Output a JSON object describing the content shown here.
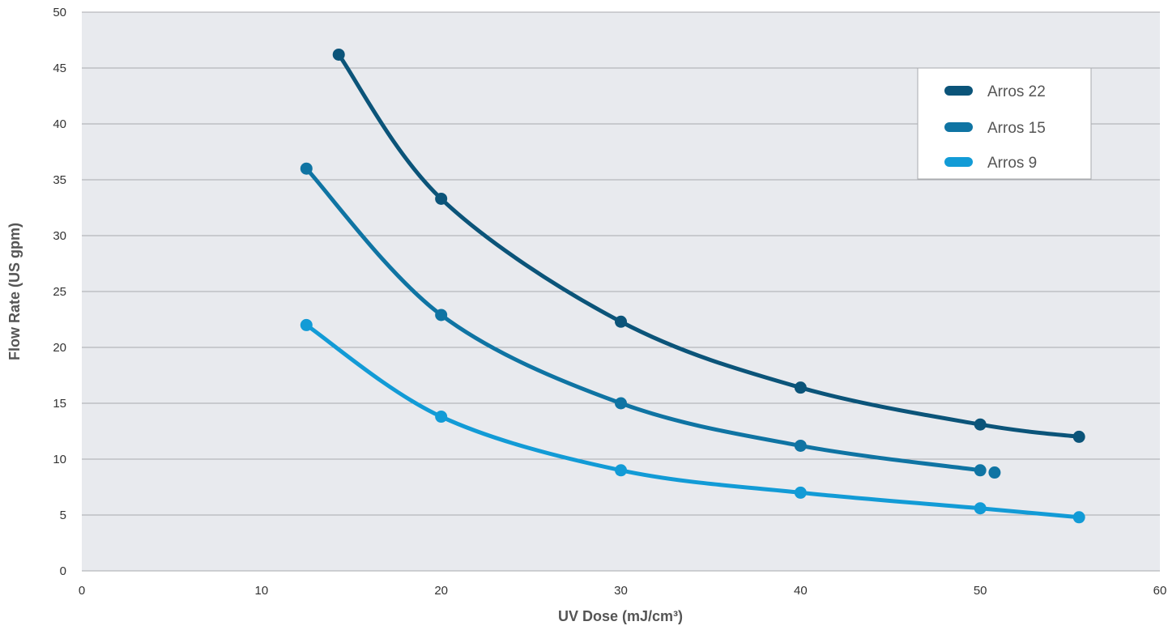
{
  "chart_data": {
    "type": "line",
    "title": "",
    "xlabel": "UV Dose (mJ/cm³)",
    "ylabel": "Flow Rate (US gpm)",
    "xlim": [
      0,
      60
    ],
    "ylim": [
      0,
      50
    ],
    "x_ticks": [
      "0",
      "10",
      "20",
      "30",
      "40",
      "50",
      "60"
    ],
    "y_ticks": [
      "0",
      "5",
      "10",
      "15",
      "20",
      "25",
      "30",
      "35",
      "40",
      "45",
      "50"
    ],
    "grid": "horizontal",
    "legend_position": "top-right",
    "colors": {
      "plot_background": "#e8eaee",
      "grid": "#a9abaf"
    },
    "series": [
      {
        "name": "Arros 22",
        "color": "#0b5479",
        "smooth": true,
        "points": [
          [
            14.3,
            46.2
          ],
          [
            20,
            33.3
          ],
          [
            30,
            22.3
          ],
          [
            40,
            16.4
          ],
          [
            50,
            13.1
          ],
          [
            55.5,
            12.0
          ]
        ]
      },
      {
        "name": "Arros 15",
        "color": "#0f74a3",
        "smooth": true,
        "points": [
          [
            12.5,
            36.0
          ],
          [
            20,
            22.9
          ],
          [
            30,
            15.0
          ],
          [
            40,
            11.2
          ],
          [
            50,
            9.0
          ]
        ],
        "extra_points": [
          [
            50.8,
            8.8
          ]
        ]
      },
      {
        "name": "Arros 9",
        "color": "#129bd6",
        "smooth": true,
        "points": [
          [
            12.5,
            22.0
          ],
          [
            20,
            13.8
          ],
          [
            30,
            9.0
          ],
          [
            40,
            7.0
          ],
          [
            50,
            5.6
          ],
          [
            55.5,
            4.8
          ]
        ]
      }
    ]
  }
}
